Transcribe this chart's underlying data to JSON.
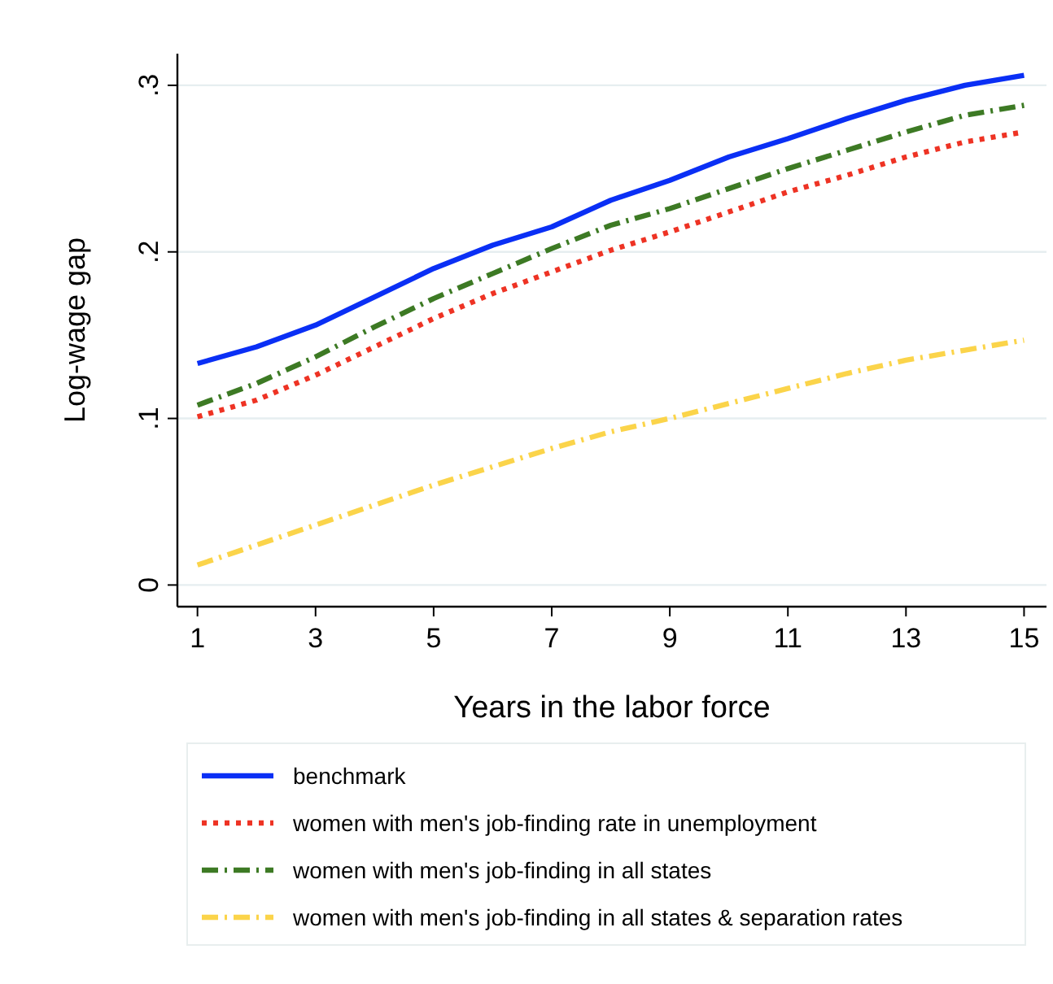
{
  "chart_data": {
    "type": "line",
    "xlabel": "Years in the labor force",
    "ylabel": "Log-wage gap",
    "x": [
      1,
      2,
      3,
      4,
      5,
      6,
      7,
      8,
      9,
      10,
      11,
      12,
      13,
      14,
      15
    ],
    "xlim": [
      0.66,
      15.38
    ],
    "xticks": [
      1,
      3,
      5,
      7,
      9,
      11,
      13,
      15
    ],
    "ylim": [
      -0.013,
      0.319
    ],
    "yticks": [
      {
        "value": 0,
        "label": "0"
      },
      {
        "value": 0.1,
        "label": ".1"
      },
      {
        "value": 0.2,
        "label": ".2"
      },
      {
        "value": 0.3,
        "label": ".3"
      }
    ],
    "grid": "y",
    "legend": "bottom",
    "marker": "none",
    "series": [
      {
        "name": "benchmark",
        "color": "#0a2ff5",
        "line_style": "solid",
        "values": [
          0.133,
          0.143,
          0.156,
          0.173,
          0.19,
          0.204,
          0.215,
          0.231,
          0.243,
          0.257,
          0.268,
          0.28,
          0.291,
          0.3,
          0.306
        ]
      },
      {
        "name": "women with men's job-finding rate in unemployment",
        "color": "#ee3324",
        "line_style": "dotted",
        "values": [
          0.101,
          0.111,
          0.126,
          0.143,
          0.16,
          0.175,
          0.188,
          0.201,
          0.212,
          0.224,
          0.236,
          0.246,
          0.257,
          0.266,
          0.272
        ]
      },
      {
        "name": "women with men's job-finding in all states",
        "color": "#3d7a24",
        "line_style": "dashed",
        "values": [
          0.108,
          0.121,
          0.137,
          0.155,
          0.172,
          0.187,
          0.202,
          0.216,
          0.226,
          0.238,
          0.25,
          0.261,
          0.272,
          0.282,
          0.288
        ]
      },
      {
        "name": "women with men's job-finding in all states & separation rates",
        "color": "#fbd44a",
        "line_style": "dashed",
        "values": [
          0.012,
          0.024,
          0.036,
          0.048,
          0.06,
          0.071,
          0.082,
          0.092,
          0.1,
          0.109,
          0.118,
          0.127,
          0.135,
          0.141,
          0.147
        ]
      }
    ]
  }
}
